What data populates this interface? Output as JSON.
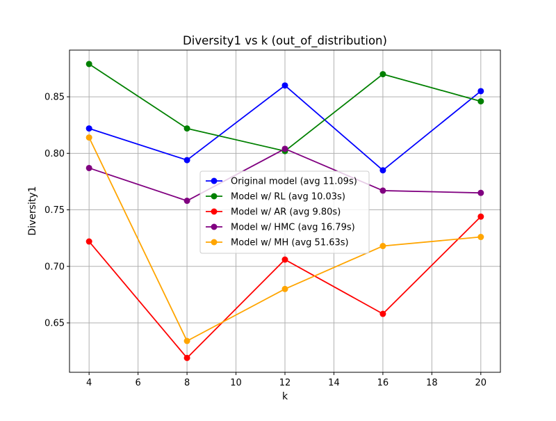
{
  "chart_data": {
    "type": "line",
    "title": "Diversity1 vs k (out_of_distribution)",
    "xlabel": "k",
    "ylabel": "Diversity1",
    "x": [
      4,
      8,
      12,
      16,
      20
    ],
    "xlim": [
      3.2,
      20.8
    ],
    "ylim": [
      0.6063,
      0.8913
    ],
    "xticks": [
      4,
      6,
      8,
      10,
      12,
      14,
      16,
      18,
      20
    ],
    "yticks": [
      0.65,
      0.7,
      0.75,
      0.8,
      0.85
    ],
    "yticklabels": [
      "0.65",
      "0.70",
      "0.75",
      "0.80",
      "0.85"
    ],
    "grid": true,
    "legend_position": "center-right",
    "series": [
      {
        "name": "Original model (avg 11.09s)",
        "color": "#0000ff",
        "values": [
          0.822,
          0.794,
          0.86,
          0.785,
          0.855
        ]
      },
      {
        "name": "Model w/ RL (avg 10.03s)",
        "color": "#008000",
        "values": [
          0.879,
          0.822,
          0.802,
          0.87,
          0.846
        ]
      },
      {
        "name": "Model w/ AR (avg 9.80s)",
        "color": "#ff0000",
        "values": [
          0.722,
          0.619,
          0.706,
          0.658,
          0.744
        ]
      },
      {
        "name": "Model w/ HMC (avg 16.79s)",
        "color": "#800080",
        "values": [
          0.787,
          0.758,
          0.804,
          0.767,
          0.765
        ]
      },
      {
        "name": "Model w/ MH (avg 51.63s)",
        "color": "#ffa500",
        "values": [
          0.814,
          0.634,
          0.68,
          0.718,
          0.726
        ]
      }
    ]
  }
}
